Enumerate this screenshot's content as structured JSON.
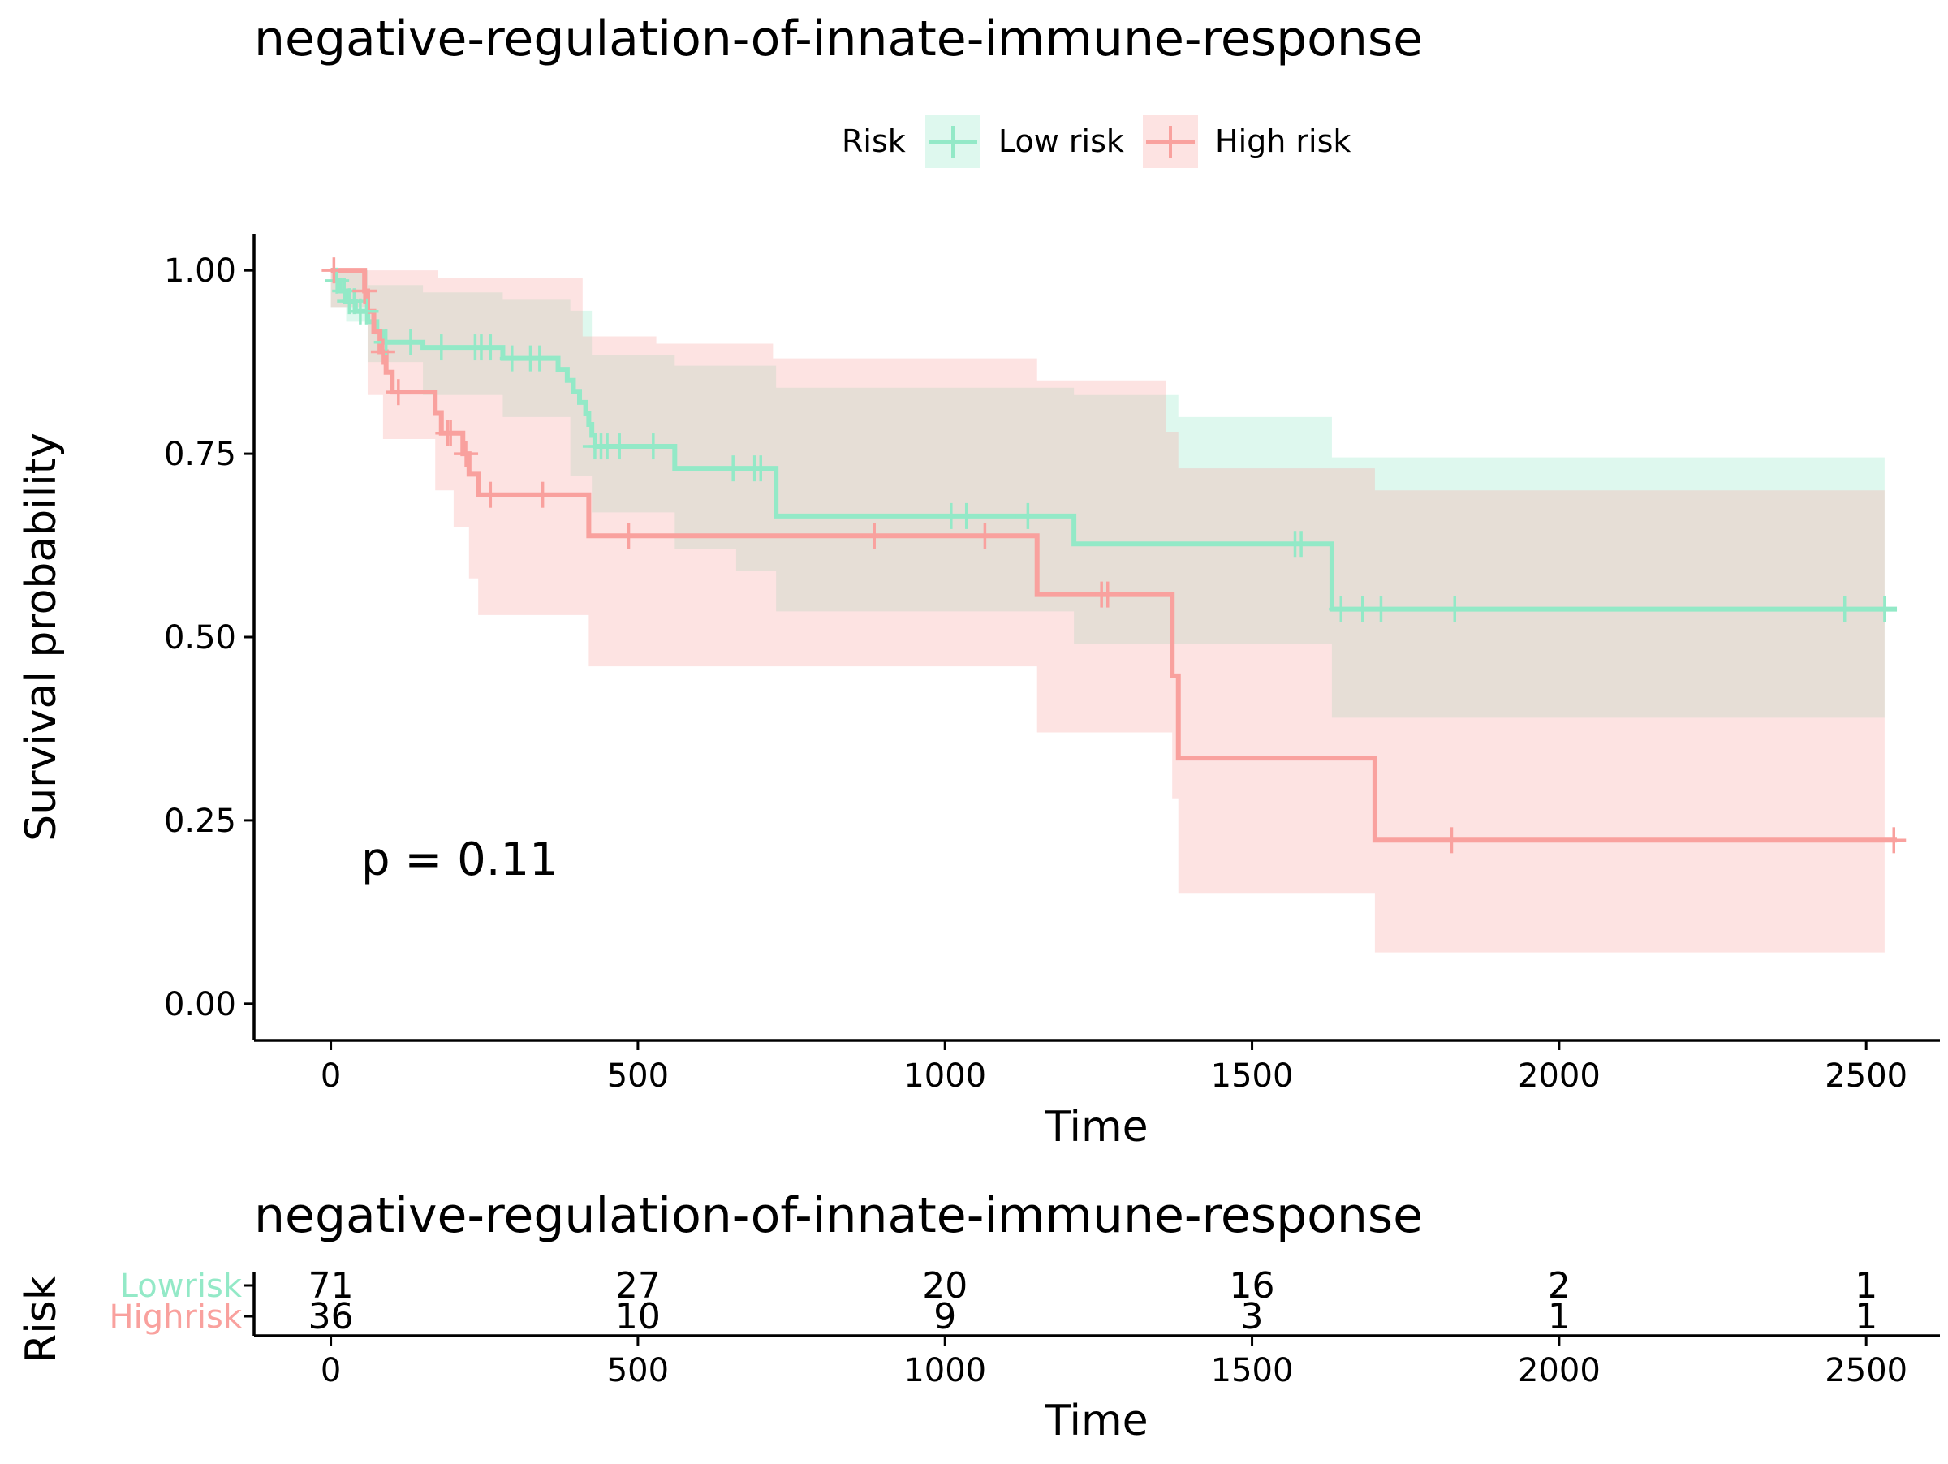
{
  "colors": {
    "low": "#93E9C7",
    "high": "#F9A19E",
    "axis": "#000000"
  },
  "chart_data": {
    "type": "line",
    "subtype": "kaplan-meier",
    "title": "negative-regulation-of-innate-immune-response",
    "xlabel": "Time",
    "ylabel": "Survival probability",
    "xlim": [
      -125,
      2620
    ],
    "ylim": [
      -0.05,
      1.05
    ],
    "xticks": [
      0,
      500,
      1000,
      1500,
      2000,
      2500
    ],
    "xtick_labels": [
      "0",
      "500",
      "1000",
      "1500",
      "2000",
      "2500"
    ],
    "yticks": [
      0,
      0.25,
      0.5,
      0.75,
      1.0
    ],
    "ytick_labels": [
      "0.00",
      "0.25",
      "0.50",
      "0.75",
      "1.00"
    ],
    "annotation": "p = 0.11",
    "grid": false,
    "legend": {
      "title": "Risk",
      "position": "top",
      "entries": [
        "Low risk",
        "High risk"
      ]
    },
    "series": [
      {
        "name": "Low risk",
        "color_key": "low",
        "steps": [
          [
            0,
            1.0
          ],
          [
            8,
            0.986
          ],
          [
            15,
            0.972
          ],
          [
            25,
            0.958
          ],
          [
            40,
            0.944
          ],
          [
            60,
            0.93
          ],
          [
            75,
            0.916
          ],
          [
            85,
            0.902
          ],
          [
            150,
            0.895
          ],
          [
            280,
            0.88
          ],
          [
            370,
            0.865
          ],
          [
            385,
            0.85
          ],
          [
            395,
            0.835
          ],
          [
            405,
            0.82
          ],
          [
            415,
            0.805
          ],
          [
            420,
            0.79
          ],
          [
            425,
            0.775
          ],
          [
            430,
            0.76
          ],
          [
            560,
            0.73
          ],
          [
            725,
            0.665
          ],
          [
            1210,
            0.627
          ],
          [
            1630,
            0.538
          ],
          [
            2550,
            0.538
          ]
        ],
        "ci_upper": [
          [
            0,
            1.0
          ],
          [
            25,
            1.0
          ],
          [
            60,
            0.98
          ],
          [
            150,
            0.97
          ],
          [
            280,
            0.96
          ],
          [
            390,
            0.945
          ],
          [
            425,
            0.885
          ],
          [
            560,
            0.87
          ],
          [
            725,
            0.84
          ],
          [
            1210,
            0.83
          ],
          [
            1380,
            0.8
          ],
          [
            1630,
            0.745
          ],
          [
            2530,
            0.745
          ]
        ],
        "ci_lower": [
          [
            0,
            0.95
          ],
          [
            25,
            0.93
          ],
          [
            60,
            0.875
          ],
          [
            150,
            0.83
          ],
          [
            280,
            0.8
          ],
          [
            390,
            0.72
          ],
          [
            425,
            0.67
          ],
          [
            560,
            0.62
          ],
          [
            660,
            0.59
          ],
          [
            725,
            0.535
          ],
          [
            1210,
            0.49
          ],
          [
            1630,
            0.39
          ],
          [
            2530,
            0.39
          ]
        ],
        "censor_times": [
          10,
          22,
          30,
          38,
          48,
          58,
          90,
          130,
          180,
          235,
          245,
          260,
          295,
          325,
          340,
          430,
          440,
          450,
          470,
          525,
          655,
          690,
          700,
          1010,
          1035,
          1135,
          1570,
          1580,
          1645,
          1680,
          1710,
          1830,
          2465,
          2530
        ]
      },
      {
        "name": "High risk",
        "color_key": "high",
        "steps": [
          [
            0,
            1.0
          ],
          [
            55,
            0.972
          ],
          [
            60,
            0.944
          ],
          [
            70,
            0.917
          ],
          [
            80,
            0.889
          ],
          [
            90,
            0.861
          ],
          [
            100,
            0.834
          ],
          [
            170,
            0.806
          ],
          [
            180,
            0.778
          ],
          [
            215,
            0.75
          ],
          [
            225,
            0.722
          ],
          [
            240,
            0.694
          ],
          [
            420,
            0.638
          ],
          [
            1150,
            0.558
          ],
          [
            1370,
            0.447
          ],
          [
            1380,
            0.335
          ],
          [
            1700,
            0.223
          ],
          [
            2550,
            0.223
          ]
        ],
        "ci_upper": [
          [
            0,
            1.0
          ],
          [
            175,
            0.99
          ],
          [
            410,
            0.91
          ],
          [
            530,
            0.9
          ],
          [
            720,
            0.88
          ],
          [
            1150,
            0.85
          ],
          [
            1360,
            0.78
          ],
          [
            1380,
            0.73
          ],
          [
            1700,
            0.7
          ],
          [
            2530,
            0.7
          ]
        ],
        "ci_lower": [
          [
            0,
            0.95
          ],
          [
            60,
            0.83
          ],
          [
            85,
            0.77
          ],
          [
            170,
            0.7
          ],
          [
            200,
            0.65
          ],
          [
            225,
            0.58
          ],
          [
            240,
            0.53
          ],
          [
            420,
            0.46
          ],
          [
            1150,
            0.37
          ],
          [
            1370,
            0.28
          ],
          [
            1380,
            0.15
          ],
          [
            1700,
            0.07
          ],
          [
            2530,
            0.07
          ]
        ],
        "censor_times": [
          5,
          55,
          85,
          110,
          190,
          195,
          220,
          260,
          345,
          485,
          885,
          1065,
          1255,
          1265,
          1825,
          2545
        ]
      }
    ],
    "risk_table": {
      "title": "negative-regulation-of-innate-immune-response",
      "ylabel": "Risk",
      "xlabel": "Time",
      "times": [
        0,
        500,
        1000,
        1500,
        2000,
        2500
      ],
      "rows": [
        {
          "label": "Lowrisk",
          "color_key": "low",
          "counts": [
            "71",
            "27",
            "20",
            "16",
            "2",
            "1"
          ]
        },
        {
          "label": "Highrisk",
          "color_key": "high",
          "counts": [
            "36",
            "10",
            "9",
            "3",
            "1",
            "1"
          ]
        }
      ]
    }
  }
}
